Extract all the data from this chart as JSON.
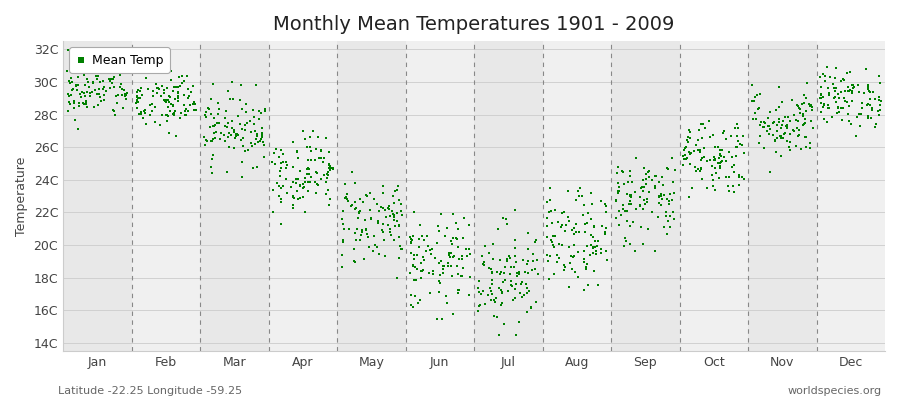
{
  "title": "Monthly Mean Temperatures 1901 - 2009",
  "ylabel": "Temperature",
  "subtitle_left": "Latitude -22.25 Longitude -59.25",
  "subtitle_right": "worldspecies.org",
  "months": [
    "Jan",
    "Feb",
    "Mar",
    "Apr",
    "May",
    "Jun",
    "Jul",
    "Aug",
    "Sep",
    "Oct",
    "Nov",
    "Dec"
  ],
  "ylim": [
    13.5,
    32.5
  ],
  "yticks": [
    14,
    16,
    18,
    20,
    22,
    24,
    26,
    28,
    30,
    32
  ],
  "ytick_labels": [
    "14C",
    "16C",
    "18C",
    "20C",
    "22C",
    "24C",
    "26C",
    "28C",
    "30C",
    "32C"
  ],
  "dot_color": "#008000",
  "background_color": "#ffffff",
  "band_color_dark": "#e8e8e8",
  "band_color_light": "#f0f0f0",
  "n_years": 109,
  "mean_temps": [
    29.5,
    28.8,
    27.2,
    24.5,
    21.5,
    18.8,
    18.2,
    20.2,
    22.8,
    25.5,
    27.5,
    29.0
  ],
  "std_temps": [
    0.9,
    1.0,
    1.1,
    1.2,
    1.4,
    1.5,
    1.6,
    1.5,
    1.4,
    1.2,
    1.1,
    0.9
  ],
  "min_temps": [
    26.5,
    26.0,
    23.5,
    21.0,
    18.0,
    15.5,
    14.5,
    17.0,
    19.0,
    22.0,
    24.5,
    26.5
  ],
  "max_temps": [
    32.0,
    31.5,
    30.0,
    27.0,
    24.5,
    22.0,
    22.5,
    23.5,
    26.5,
    28.5,
    30.5,
    31.5
  ],
  "legend_label": "Mean Temp",
  "title_fontsize": 14,
  "axis_fontsize": 9,
  "tick_fontsize": 9,
  "dot_size": 4
}
